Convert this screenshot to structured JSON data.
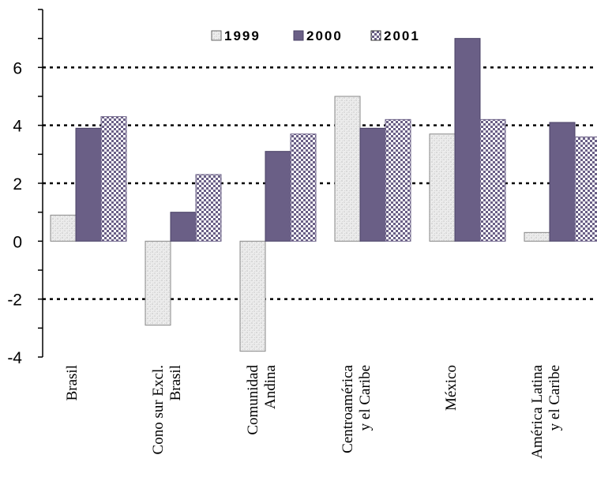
{
  "chart_data": {
    "type": "bar",
    "categories": [
      [
        "Brasil"
      ],
      [
        "Cono sur Excl.",
        "Brasil"
      ],
      [
        "Comunidad",
        "Andina"
      ],
      [
        "Centroamérica",
        "y el Caribe"
      ],
      [
        "México"
      ],
      [
        "América Latina",
        "y el Caribe"
      ]
    ],
    "series": [
      {
        "name": "1999",
        "values": [
          0.9,
          -2.9,
          -3.8,
          5.0,
          3.7,
          0.3
        ]
      },
      {
        "name": "2000",
        "values": [
          3.9,
          1.0,
          3.1,
          3.9,
          7.0,
          4.1
        ]
      },
      {
        "name": "2001",
        "values": [
          4.3,
          2.3,
          3.7,
          4.2,
          4.2,
          3.6
        ]
      }
    ],
    "ylim": [
      -4,
      8
    ],
    "yticks": [
      -4,
      -2,
      0,
      2,
      4,
      6
    ],
    "gridlines": [
      -2,
      2,
      4,
      6
    ],
    "grid_style": "dotted",
    "legend_position": "top-center",
    "colors": {
      "s1999": "#e8e8e8",
      "s2000": "#6a5f86",
      "s2001": "#b8b4cc",
      "axis": "#000000"
    }
  }
}
